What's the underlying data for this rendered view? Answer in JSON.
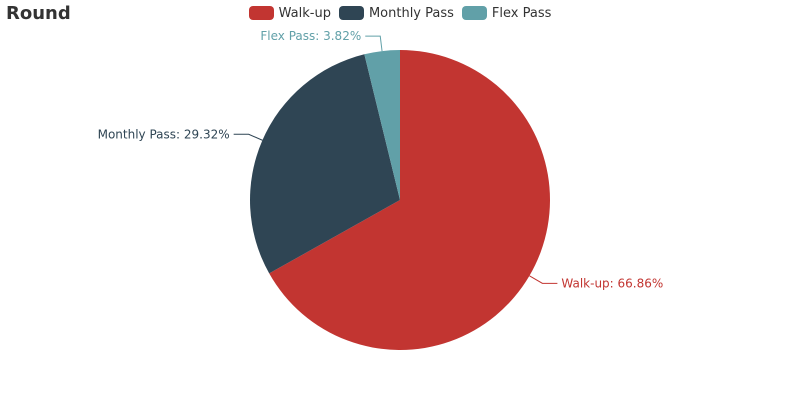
{
  "chart_data": {
    "type": "pie",
    "title": "Round",
    "slices": [
      {
        "name": "Walk-up",
        "percent": 66.86,
        "label": "Walk-up: 66.86%",
        "color": "#c23531"
      },
      {
        "name": "Monthly Pass",
        "percent": 29.32,
        "label": "Monthly Pass: 29.32%",
        "color": "#2f4554"
      },
      {
        "name": "Flex Pass",
        "percent": 3.82,
        "label": "Flex Pass: 3.82%",
        "color": "#61a0a8"
      }
    ],
    "legend": {
      "position": "top-center"
    }
  }
}
